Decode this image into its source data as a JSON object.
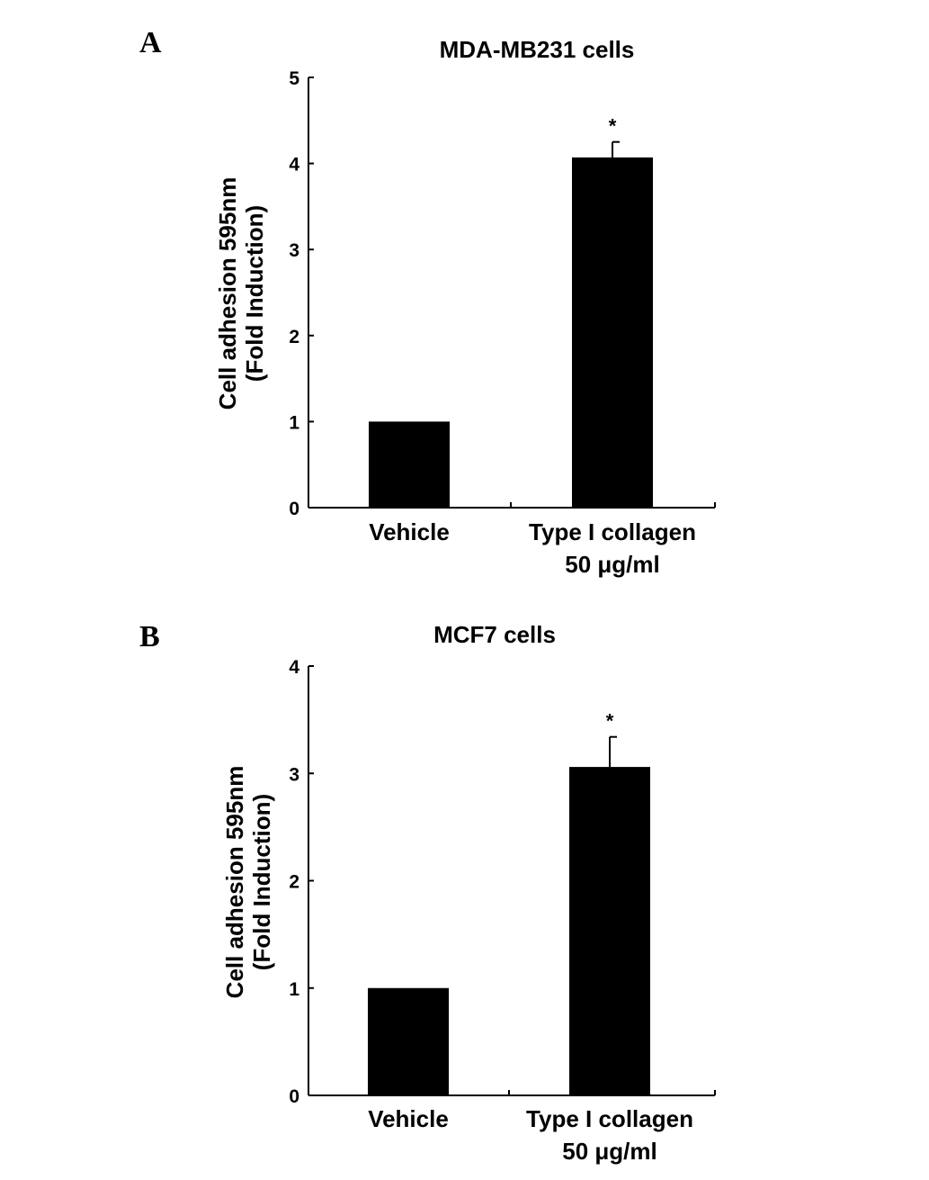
{
  "chart_data": [
    {
      "panel": "A",
      "type": "bar",
      "title": "MDA-MB231 cells",
      "ylabel": [
        "Cell adhesion 595nm",
        "(Fold Induction)"
      ],
      "categories": [
        [
          "Vehicle"
        ],
        [
          "Type I collagen",
          "50 μg/ml"
        ]
      ],
      "values": [
        1.0,
        4.07
      ],
      "errors": [
        0,
        0.18
      ],
      "significance": [
        "",
        "*"
      ],
      "ylim": [
        0,
        5
      ],
      "yticks": [
        0,
        1,
        2,
        3,
        4,
        5
      ],
      "grid": false,
      "bar_color": "#000000"
    },
    {
      "panel": "B",
      "type": "bar",
      "title": "MCF7 cells",
      "ylabel": [
        "Cell adhesion 595nm",
        "(Fold Induction)"
      ],
      "categories": [
        [
          "Vehicle"
        ],
        [
          "Type I collagen",
          "50 μg/ml"
        ]
      ],
      "values": [
        1.0,
        3.06
      ],
      "errors": [
        0,
        0.28
      ],
      "significance": [
        "",
        "*"
      ],
      "ylim": [
        0,
        4
      ],
      "yticks": [
        0,
        1,
        2,
        3,
        4
      ],
      "grid": false,
      "bar_color": "#000000"
    }
  ]
}
